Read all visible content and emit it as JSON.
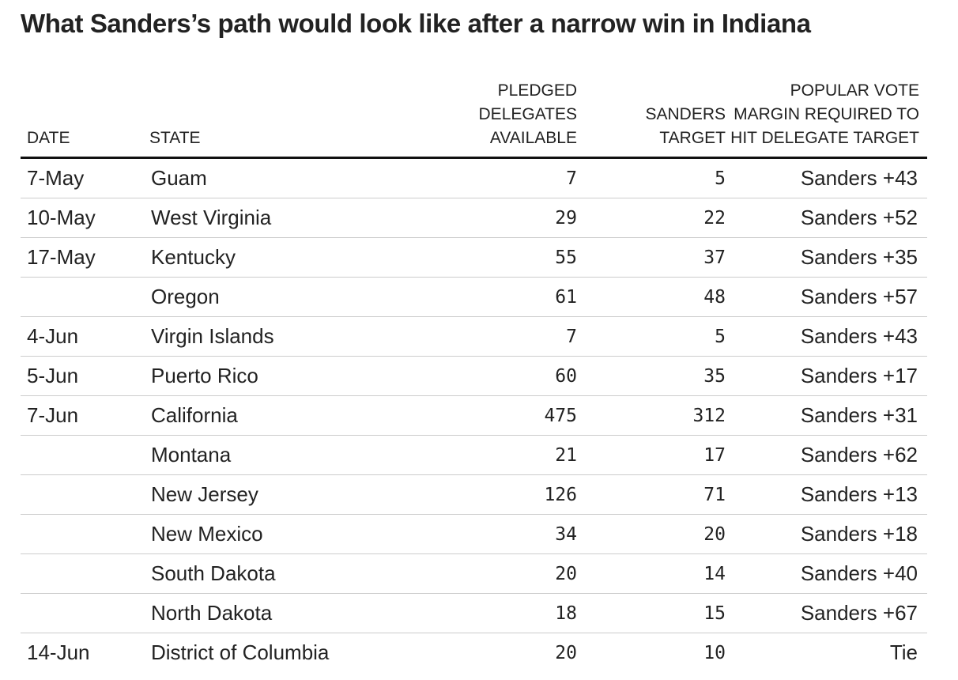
{
  "title": "What Sanders’s path would look like after a narrow win in Indiana",
  "chart_data": {
    "type": "table",
    "title": "What Sanders’s path would look like after a narrow win in Indiana",
    "columns": [
      {
        "key": "date",
        "lines": [
          "DATE"
        ]
      },
      {
        "key": "state",
        "lines": [
          "STATE"
        ]
      },
      {
        "key": "pledged",
        "lines": [
          "PLEDGED",
          "DELEGATES",
          "AVAILABLE"
        ]
      },
      {
        "key": "target",
        "lines": [
          "SANDERS",
          "TARGET"
        ]
      },
      {
        "key": "margin",
        "lines": [
          "POPULAR VOTE",
          "MARGIN REQUIRED TO",
          "HIT DELEGATE TARGET"
        ]
      }
    ],
    "rows": [
      {
        "date": "7-May",
        "state": "Guam",
        "pledged": 7,
        "target": 5,
        "margin": "Sanders +43"
      },
      {
        "date": "10-May",
        "state": "West Virginia",
        "pledged": 29,
        "target": 22,
        "margin": "Sanders +52"
      },
      {
        "date": "17-May",
        "state": "Kentucky",
        "pledged": 55,
        "target": 37,
        "margin": "Sanders +35"
      },
      {
        "date": "",
        "state": "Oregon",
        "pledged": 61,
        "target": 48,
        "margin": "Sanders +57"
      },
      {
        "date": "4-Jun",
        "state": "Virgin Islands",
        "pledged": 7,
        "target": 5,
        "margin": "Sanders +43"
      },
      {
        "date": "5-Jun",
        "state": "Puerto Rico",
        "pledged": 60,
        "target": 35,
        "margin": "Sanders +17"
      },
      {
        "date": "7-Jun",
        "state": "California",
        "pledged": 475,
        "target": 312,
        "margin": "Sanders +31"
      },
      {
        "date": "",
        "state": "Montana",
        "pledged": 21,
        "target": 17,
        "margin": "Sanders +62"
      },
      {
        "date": "",
        "state": "New Jersey",
        "pledged": 126,
        "target": 71,
        "margin": "Sanders +13"
      },
      {
        "date": "",
        "state": "New Mexico",
        "pledged": 34,
        "target": 20,
        "margin": "Sanders +18"
      },
      {
        "date": "",
        "state": "South Dakota",
        "pledged": 20,
        "target": 14,
        "margin": "Sanders +40"
      },
      {
        "date": "",
        "state": "North Dakota",
        "pledged": 18,
        "target": 15,
        "margin": "Sanders +67"
      },
      {
        "date": "14-Jun",
        "state": "District of Columbia",
        "pledged": 20,
        "target": 10,
        "margin": "Tie"
      }
    ]
  }
}
